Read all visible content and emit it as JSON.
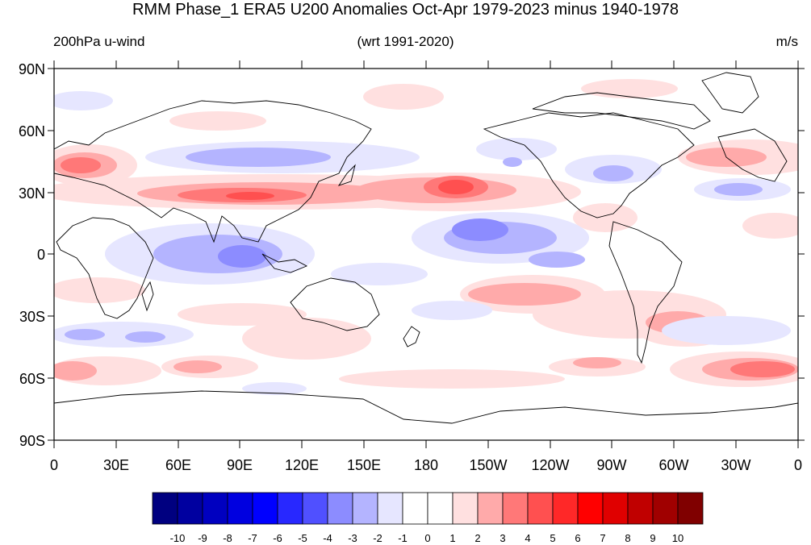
{
  "title": "RMM Phase_1 ERA5 U200 Anomalies Oct-Apr 1979-2023 minus 1940-1978",
  "subtitle_left": "200hPa u-wind",
  "subtitle_center": "(wrt 1991-2020)",
  "subtitle_right": "m/s",
  "lat_labels": [
    "90N",
    "60N",
    "30N",
    "0",
    "30S",
    "60S",
    "90S"
  ],
  "lon_labels": [
    "0",
    "30E",
    "60E",
    "90E",
    "120E",
    "150E",
    "180",
    "150W",
    "120W",
    "90W",
    "60W",
    "30W",
    "0"
  ],
  "colorbar": {
    "labels": [
      "-10",
      "-9",
      "-8",
      "-7",
      "-6",
      "-5",
      "-4",
      "-3",
      "-2",
      "-1",
      "0",
      "1",
      "2",
      "3",
      "4",
      "5",
      "6",
      "7",
      "8",
      "9",
      "10"
    ],
    "colors": [
      "#000080",
      "#0000a0",
      "#0000c0",
      "#0000e0",
      "#0000ff",
      "#2828ff",
      "#5050ff",
      "#8c8cff",
      "#b4b4ff",
      "#e6e6ff",
      "#ffffff",
      "#ffffff",
      "#ffe0e0",
      "#ffaaaa",
      "#ff7878",
      "#ff5050",
      "#ff2828",
      "#ff0000",
      "#e00000",
      "#c00000",
      "#a00000",
      "#800000"
    ]
  }
}
